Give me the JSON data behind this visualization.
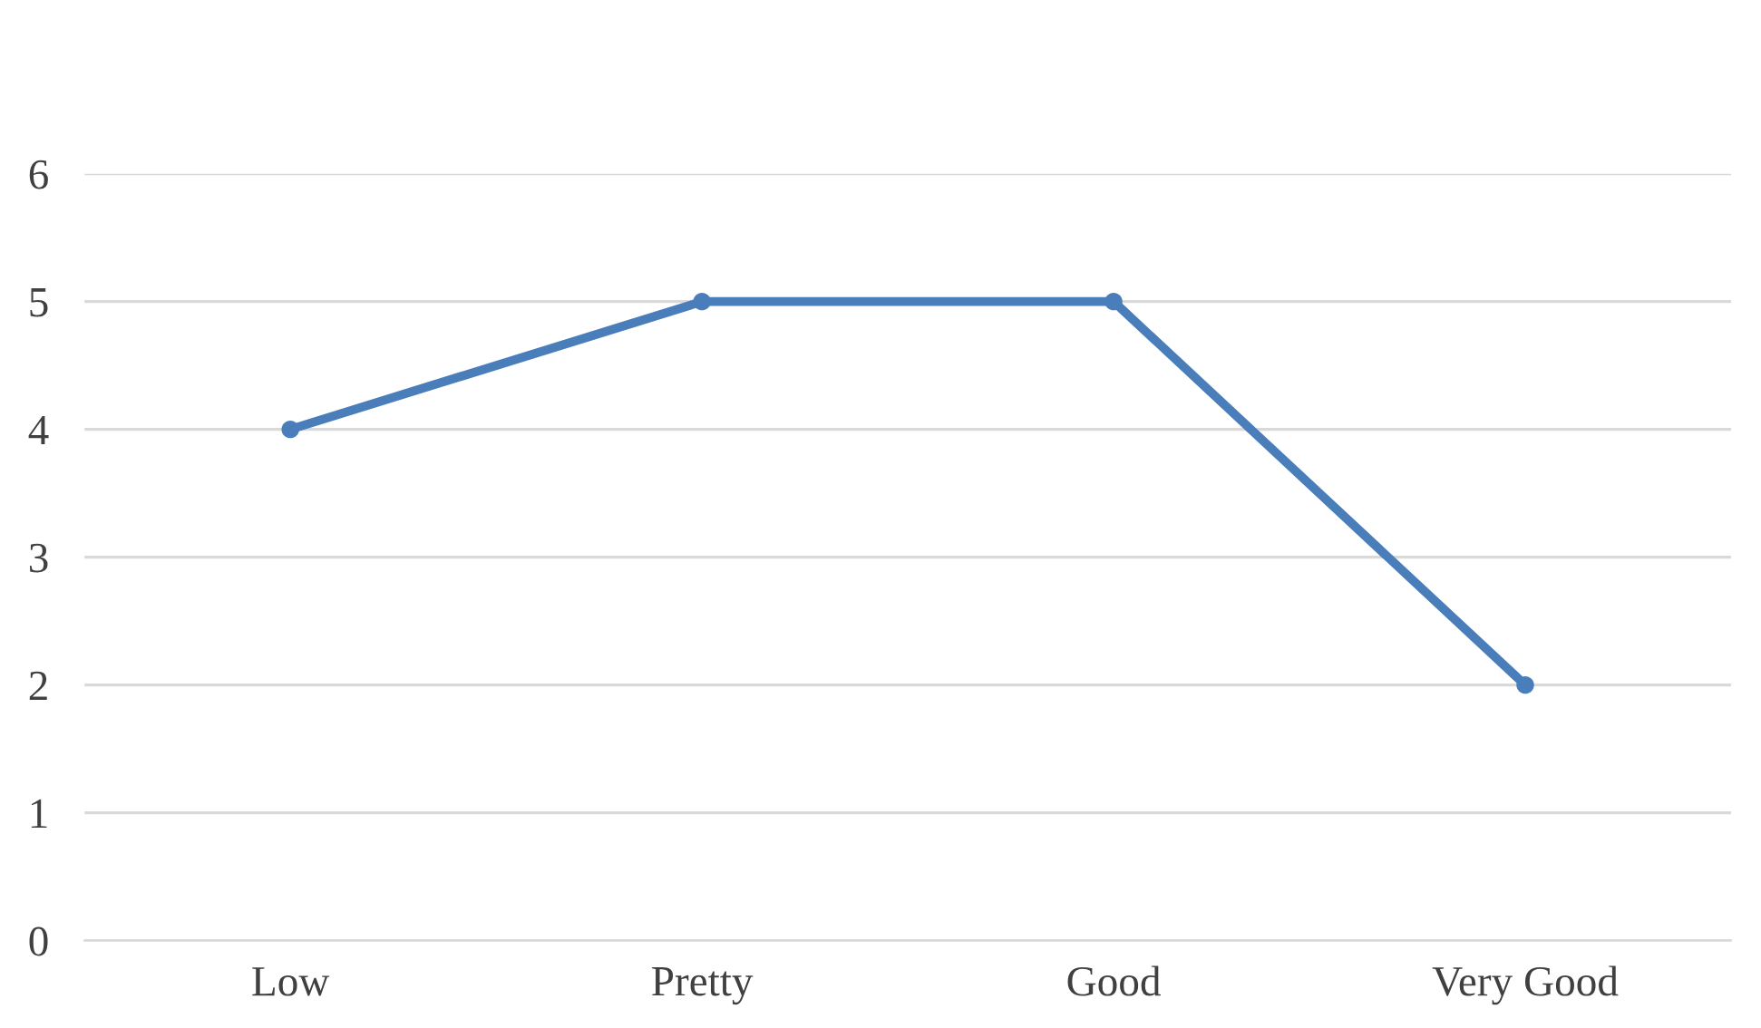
{
  "chart_data": {
    "type": "line",
    "categories": [
      "Low",
      "Pretty",
      "Good",
      "Very Good"
    ],
    "series": [
      {
        "color": "#4a7ebb",
        "values": [
          4,
          5,
          5,
          2
        ]
      }
    ],
    "ylim": [
      0,
      6
    ],
    "yticks": [
      0,
      1,
      2,
      3,
      4,
      5,
      6
    ],
    "grid": "y",
    "marker": "circle",
    "line_style": "solid"
  }
}
